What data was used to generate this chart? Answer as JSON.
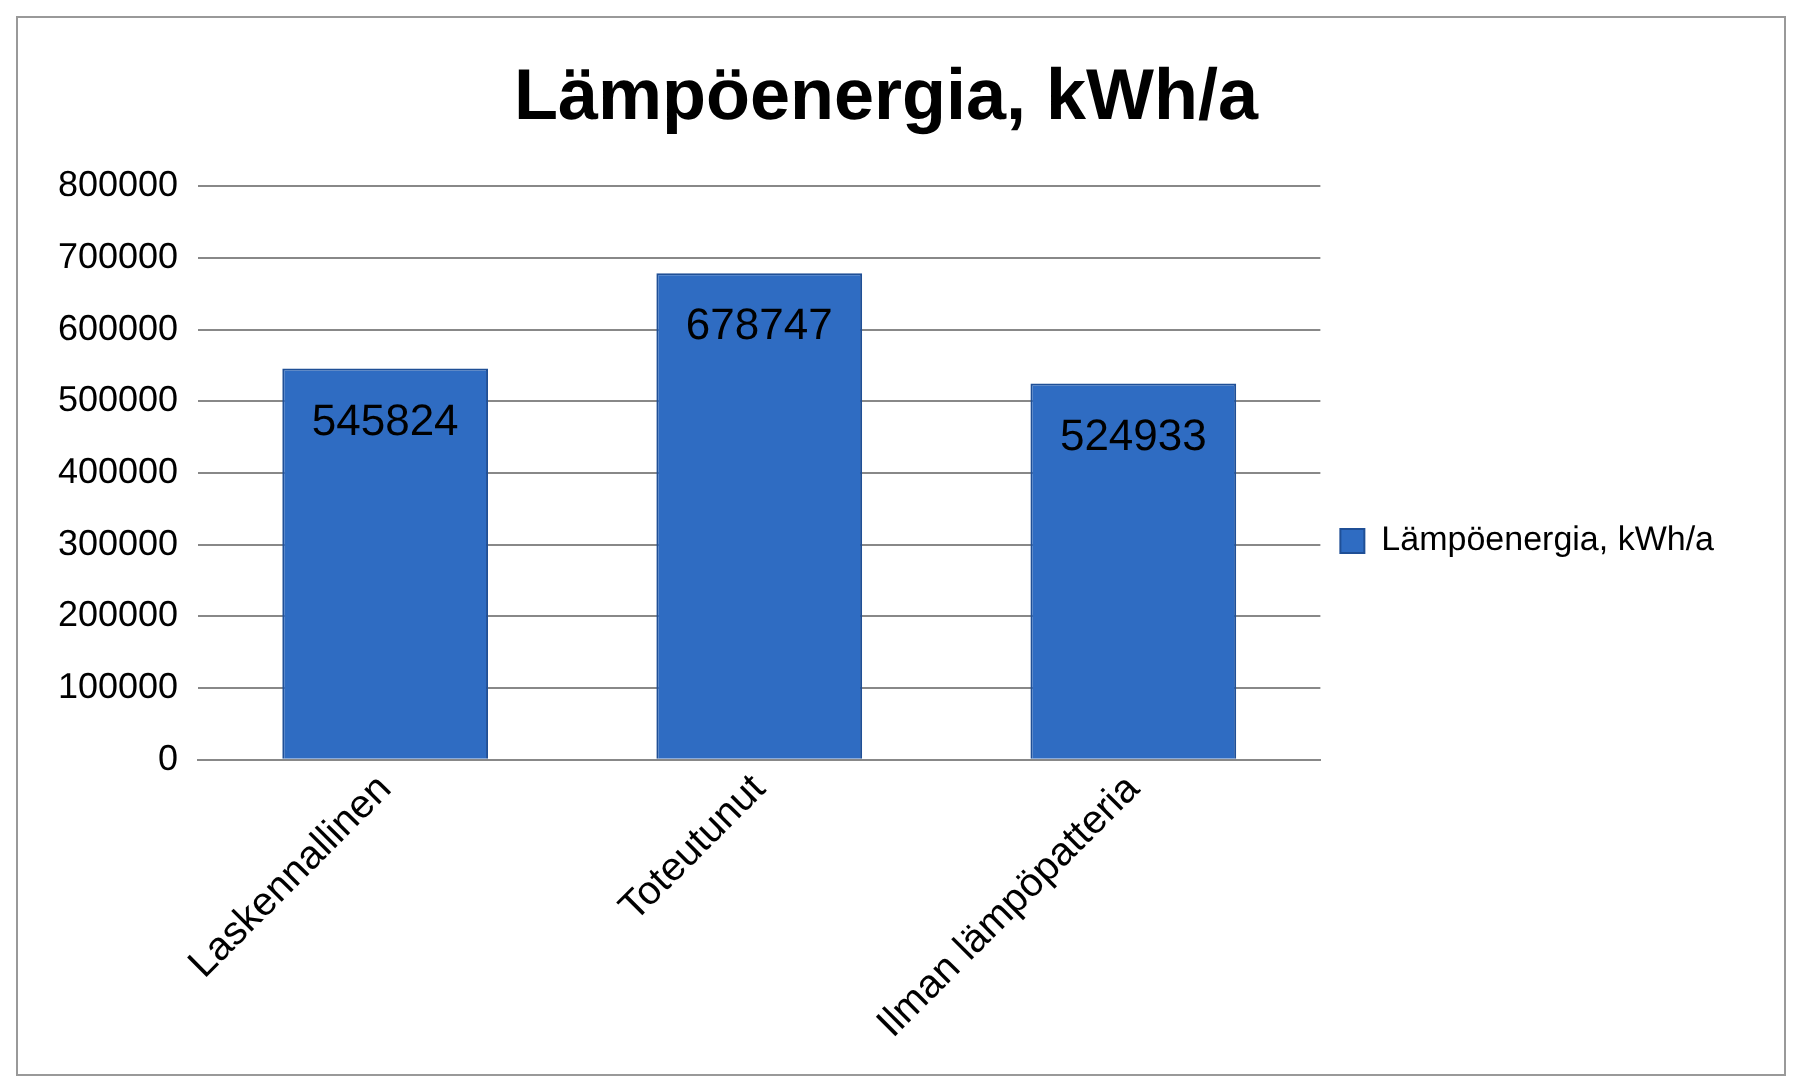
{
  "chart_data": {
    "type": "bar",
    "title": "Lämpöenergia, kWh/a",
    "categories": [
      "Laskennallinen",
      "Toteutunut",
      "Ilman lämpöpatteria"
    ],
    "series": [
      {
        "name": "Lämpöenergia, kWh/a",
        "color": "#2f6cc2",
        "values": [
          545824,
          678747,
          524933
        ]
      }
    ],
    "ylim": [
      0,
      800000
    ],
    "yticks": [
      0,
      100000,
      200000,
      300000,
      400000,
      500000,
      600000,
      700000,
      800000
    ],
    "grid": "y",
    "legend": "right",
    "data_labels": true
  }
}
